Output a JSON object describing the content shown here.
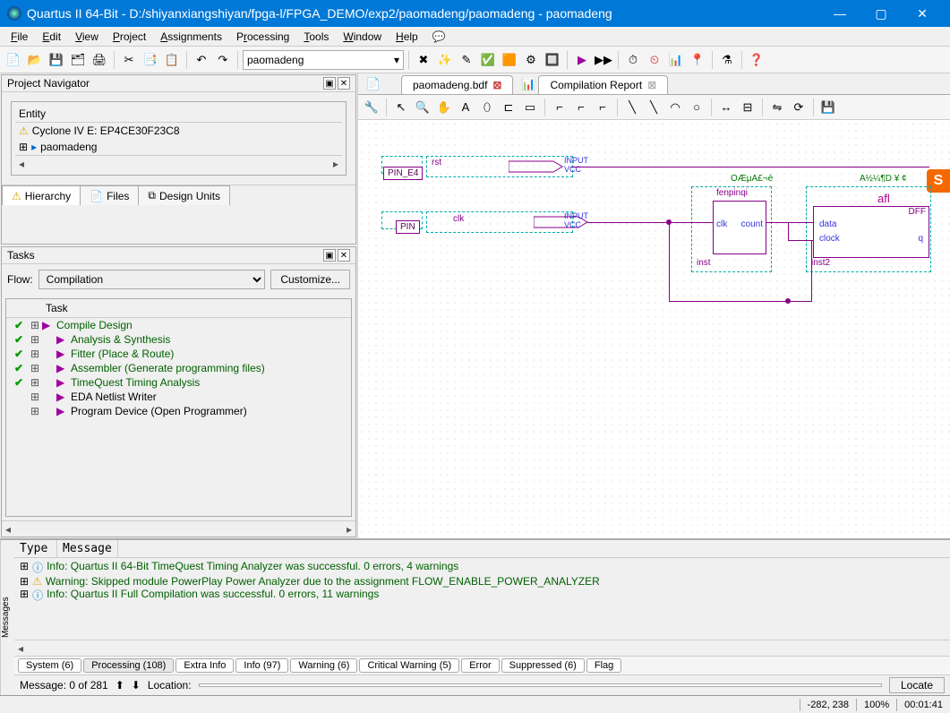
{
  "window": {
    "title": "Quartus II 64-Bit - D:/shiyanxiangshiyan/fpga-l/FPGA_DEMO/exp2/paomadeng/paomadeng - paomadeng",
    "min": "—",
    "max": "▢",
    "close": "✕"
  },
  "menu": [
    "File",
    "Edit",
    "View",
    "Project",
    "Assignments",
    "Processing",
    "Tools",
    "Window",
    "Help"
  ],
  "combo_project": "paomadeng",
  "navigator": {
    "title": "Project Navigator",
    "entity_hdr": "Entity",
    "device": "Cyclone IV E: EP4CE30F23C8",
    "top": "paomadeng",
    "tabs": [
      "Hierarchy",
      "Files",
      "Design Units"
    ]
  },
  "tasks": {
    "title": "Tasks",
    "flow_label": "Flow:",
    "flow_value": "Compilation",
    "customize": "Customize...",
    "col": "Task",
    "rows": [
      {
        "chk": "✔",
        "lbl": "Compile Design",
        "indent": 0,
        "green": true
      },
      {
        "chk": "✔",
        "lbl": "Analysis & Synthesis",
        "indent": 1,
        "green": true
      },
      {
        "chk": "✔",
        "lbl": "Fitter (Place & Route)",
        "indent": 1,
        "green": true
      },
      {
        "chk": "✔",
        "lbl": "Assembler (Generate programming files)",
        "indent": 1,
        "green": true
      },
      {
        "chk": "✔",
        "lbl": "TimeQuest Timing Analysis",
        "indent": 1,
        "green": true
      },
      {
        "chk": "",
        "lbl": "EDA Netlist Writer",
        "indent": 1,
        "green": false
      },
      {
        "chk": "",
        "lbl": "Program Device (Open Programmer)",
        "indent": 1,
        "green": false
      }
    ]
  },
  "docs": {
    "tab1": "paomadeng.bdf",
    "tab2": "Compilation Report"
  },
  "schematic": {
    "pin1": "PIN_E4",
    "sig1": "rst",
    "input_lbl": "INPUT",
    "vcc": "VCC",
    "pin2": "PIN",
    "sig2": "clk",
    "blk1_name": "fenpinqi",
    "blk1_p1": "clk",
    "blk1_p2": "count",
    "blk1_inst": "inst",
    "blk2_name": "afl",
    "blk2_type": "DFF",
    "blk2_p1": "data",
    "blk2_p2": "clock",
    "blk2_p3": "q",
    "blk2_inst": "inst2",
    "greentxt1": "OÆμA£¬é",
    "greentxt2": "A½¼¶D ¥ ¢"
  },
  "messages": {
    "col1": "Type",
    "col2": "Message",
    "rows": [
      {
        "icon": "ⓘ",
        "cls": "info",
        "text": "Info: Quartus II 64-Bit TimeQuest Timing Analyzer was successful. 0 errors, 4 warnings"
      },
      {
        "icon": "⚠",
        "cls": "warn",
        "text": "Warning: Skipped module PowerPlay Power Analyzer due to the assignment FLOW_ENABLE_POWER_ANALYZER"
      },
      {
        "icon": "ⓘ",
        "cls": "info",
        "text": "Info: Quartus II Full Compilation was successful. 0 errors, 11 warnings"
      }
    ],
    "tabs": [
      "System (6)",
      "Processing (108)",
      "Extra Info",
      "Info (97)",
      "Warning (6)",
      "Critical Warning (5)",
      "Error",
      "Suppressed (6)",
      "Flag"
    ],
    "active_tab": 1,
    "footer_msg": "Message: 0 of 281",
    "loc_label": "Location:",
    "locate": "Locate",
    "side": "Messages"
  },
  "status": {
    "coord": "-282, 238",
    "zoom": "100%",
    "time": "00:01:41"
  }
}
